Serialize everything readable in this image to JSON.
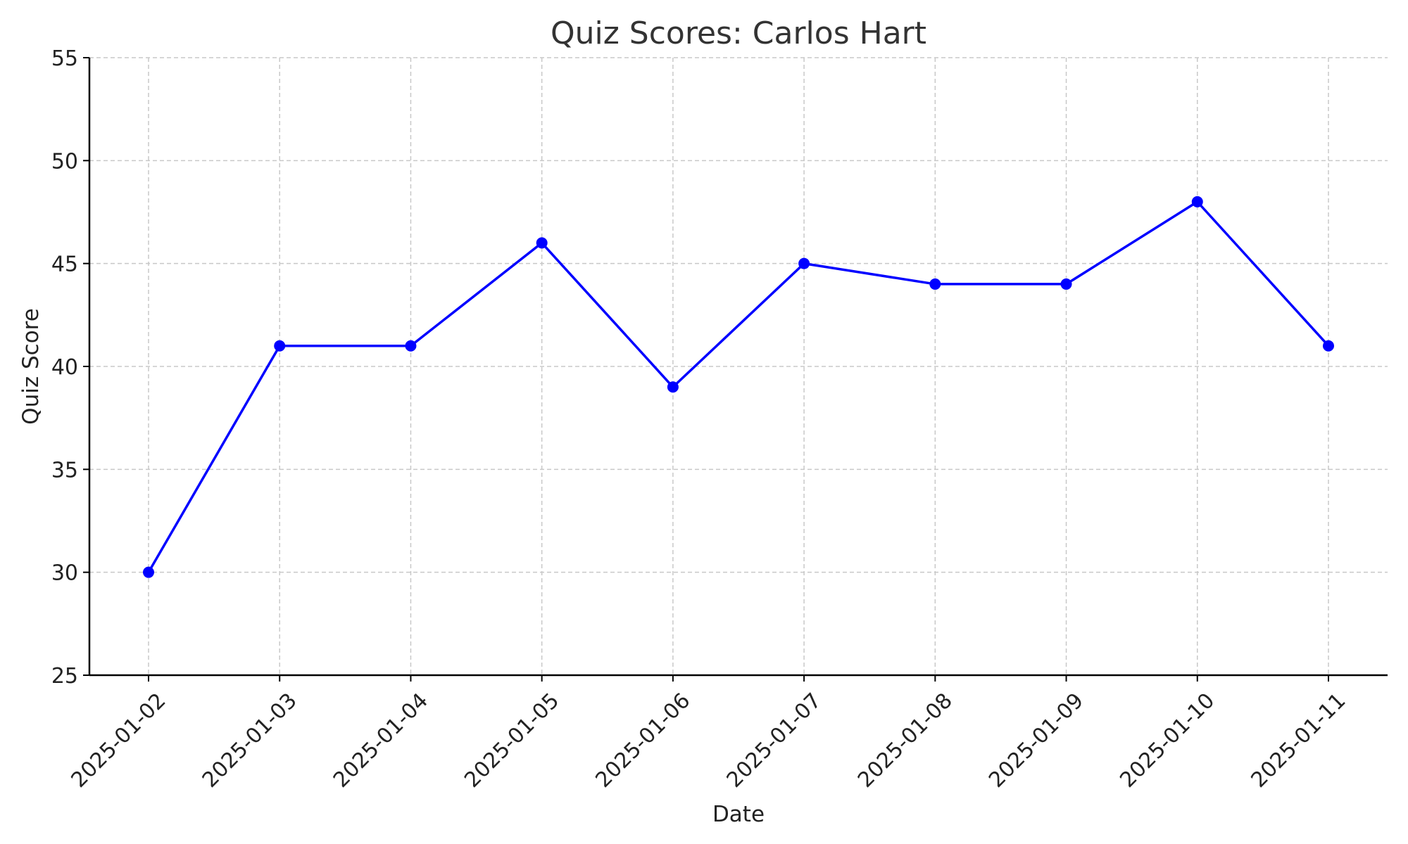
{
  "chart_data": {
    "type": "line",
    "title": "Quiz Scores: Carlos Hart",
    "xlabel": "Date",
    "ylabel": "Quiz Score",
    "categories": [
      "2025-01-02",
      "2025-01-03",
      "2025-01-04",
      "2025-01-05",
      "2025-01-06",
      "2025-01-07",
      "2025-01-08",
      "2025-01-09",
      "2025-01-10",
      "2025-01-11"
    ],
    "series": [
      {
        "values": [
          30,
          41,
          41,
          46,
          39,
          45,
          44,
          44,
          48,
          41
        ],
        "color": "#0000ff"
      }
    ],
    "ylim": [
      25,
      55
    ],
    "yticks": [
      25,
      30,
      35,
      40,
      45,
      50,
      55
    ],
    "grid": true,
    "marker": "circle"
  }
}
